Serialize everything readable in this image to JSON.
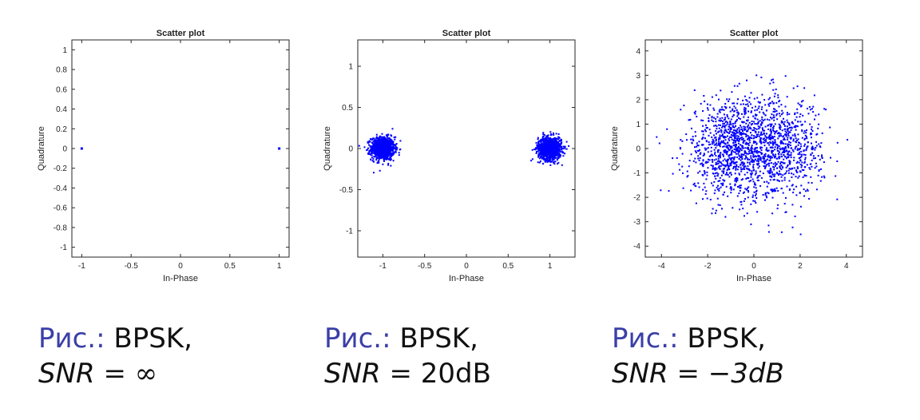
{
  "colors": {
    "points": "#0000ff",
    "caption_prefix": "#3a3fa8",
    "text": "#111111"
  },
  "captions": [
    {
      "prefix": "Рис.:",
      "text": " BPSK,",
      "snr_label": "SNR",
      "snr_eq": " = ",
      "snr_value": "∞",
      "value_italic": false
    },
    {
      "prefix": "Рис.:",
      "text": " BPSK,",
      "snr_label": "SNR",
      "snr_eq": " = ",
      "snr_value": "20dB",
      "value_italic": false
    },
    {
      "prefix": "Рис.:",
      "text": " BPSK,",
      "snr_label": "SNR",
      "snr_eq": " = ",
      "snr_value": "−3dB",
      "value_italic": true
    }
  ],
  "chart_data": [
    {
      "type": "scatter",
      "title": "Scatter plot",
      "xlabel": "In-Phase",
      "ylabel": "Quadrature",
      "xlim": [
        -1.1,
        1.1
      ],
      "ylim": [
        -1.1,
        1.1
      ],
      "xticks": [
        -1,
        -0.5,
        0,
        0.5,
        1
      ],
      "yticks": [
        -1,
        -0.8,
        -0.6,
        -0.4,
        -0.2,
        0,
        0.2,
        0.4,
        0.6,
        0.8,
        1
      ],
      "grid": false,
      "series": [
        {
          "x": [
            -1,
            1
          ],
          "y": [
            0,
            0
          ]
        }
      ]
    },
    {
      "type": "scatter",
      "title": "Scatter plot",
      "xlabel": "In-Phase",
      "ylabel": "Quadrature",
      "xlim": [
        -1.3,
        1.3
      ],
      "ylim": [
        -1.32,
        1.32
      ],
      "xticks": [
        -1,
        -0.5,
        0,
        0.5,
        1
      ],
      "yticks": [
        -1,
        -0.5,
        0,
        0.5,
        1
      ],
      "grid": false,
      "series": [
        {
          "clusters": [
            {
              "x": -1,
              "y": 0
            },
            {
              "x": 1,
              "y": 0
            }
          ],
          "noise_std": 0.07,
          "points_per_cluster": 1000
        }
      ]
    },
    {
      "type": "scatter",
      "title": "Scatter plot",
      "xlabel": "In-Phase",
      "ylabel": "Quadrature",
      "xlim": [
        -4.7,
        4.7
      ],
      "ylim": [
        -4.45,
        4.45
      ],
      "xticks": [
        -4,
        -2,
        0,
        2,
        4
      ],
      "yticks": [
        -4,
        -3,
        -2,
        -1,
        0,
        1,
        2,
        3,
        4
      ],
      "grid": false,
      "series": [
        {
          "clusters": [
            {
              "x": -1,
              "y": 0
            },
            {
              "x": 1,
              "y": 0
            }
          ],
          "noise_std": 1.0,
          "points_per_cluster": 900
        }
      ]
    }
  ]
}
